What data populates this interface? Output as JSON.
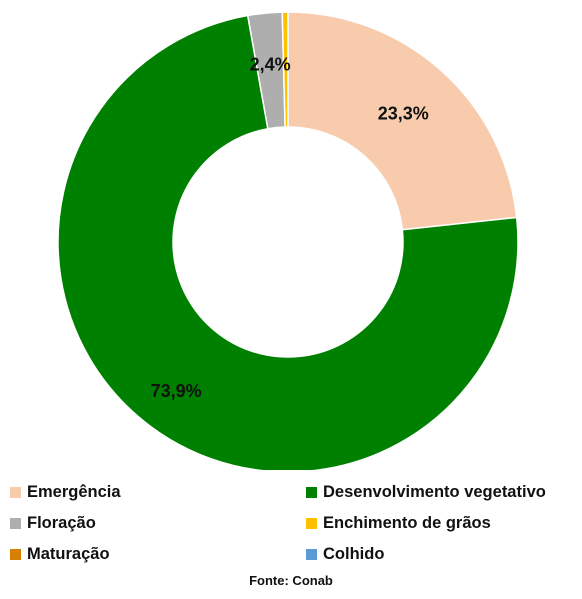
{
  "chart_data": {
    "type": "pie",
    "donut": true,
    "categories": [
      "Emergência",
      "Desenvolvimento vegetativo",
      "Floração",
      "Enchimento de grãos",
      "Maturação",
      "Colhido"
    ],
    "values": [
      23.3,
      73.9,
      2.4,
      0.4,
      0,
      0
    ],
    "data_labels": [
      "23,3%",
      "73,9%",
      "2,4%",
      "",
      "",
      ""
    ],
    "colors": [
      "#F8CBAD",
      "#008000",
      "#AEAEAE",
      "#FFC000",
      "#D58000",
      "#5B9BD5"
    ],
    "legend": "bottom"
  },
  "source": "Fonte: Conab"
}
